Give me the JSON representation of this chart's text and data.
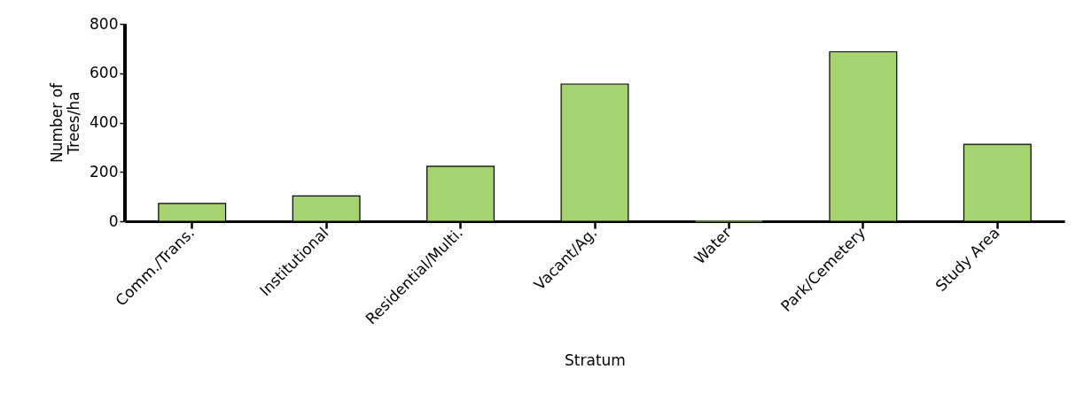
{
  "chart_data": {
    "type": "bar",
    "xlabel": "Stratum",
    "ylabel": "Number of Trees/ha",
    "categories": [
      "Comm./Trans.",
      "Institutional",
      "Residential/Multi.",
      "Vacant/Ag.",
      "Water",
      "Park/Cemetery",
      "Study Area"
    ],
    "values": [
      72,
      103,
      223,
      556,
      0,
      687,
      312
    ],
    "color": "#a5d36f",
    "ylim": [
      0,
      800
    ],
    "yticks": [
      0,
      200,
      400,
      600,
      800
    ],
    "grid": false
  }
}
